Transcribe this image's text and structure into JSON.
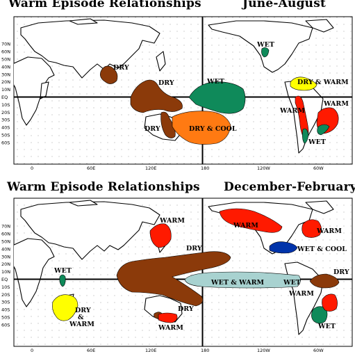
{
  "panels": [
    {
      "title_left": "Warm Episode Relationships",
      "title_right": "June-August",
      "lat_labels": [
        "70N",
        "60N",
        "50N",
        "40N",
        "30N",
        "20N",
        "10N",
        "EQ",
        "10S",
        "20S",
        "30S",
        "40S",
        "50S",
        "60S"
      ],
      "lon_labels": [
        "0",
        "60E",
        "120E",
        "180",
        "120W",
        "60W"
      ],
      "regions": [
        {
          "label": "DRY",
          "kind": "dry",
          "color": "#8b3a0a"
        },
        {
          "label": "DRY",
          "kind": "dry",
          "color": "#8b3a0a"
        },
        {
          "label": "DRY",
          "kind": "dry",
          "color": "#8b3a0a"
        },
        {
          "label": "DRY & COOL",
          "kind": "dry-cool",
          "color": "#ff7a12"
        },
        {
          "label": "WET",
          "kind": "wet",
          "color": "#0f8a5a"
        },
        {
          "label": "WET",
          "kind": "wet",
          "color": "#0f8a5a"
        },
        {
          "label": "DRY & WARM",
          "kind": "dry-warm",
          "color": "#ffff00"
        },
        {
          "label": "WARM",
          "kind": "warm",
          "color": "#ff1a00"
        },
        {
          "label": "WARM",
          "kind": "warm",
          "color": "#ff1a00"
        },
        {
          "label": "WET",
          "kind": "wet",
          "color": "#0f8a5a"
        }
      ]
    },
    {
      "title_left": "Warm Episode Relationships",
      "title_right": "December-February",
      "lat_labels": [
        "70N",
        "60N",
        "50N",
        "40N",
        "30N",
        "20N",
        "10N",
        "EQ",
        "10S",
        "20S",
        "30S",
        "40S",
        "50S",
        "60S"
      ],
      "lon_labels": [
        "0",
        "60E",
        "120E",
        "180",
        "120W",
        "60W"
      ],
      "regions": [
        {
          "label": "WARM",
          "kind": "warm",
          "color": "#ff1a00"
        },
        {
          "label": "WARM",
          "kind": "warm",
          "color": "#ff1a00"
        },
        {
          "label": "WARM",
          "kind": "warm",
          "color": "#ff1a00"
        },
        {
          "label": "DRY",
          "kind": "dry",
          "color": "#8b3a0a"
        },
        {
          "label": "WET",
          "kind": "wet",
          "color": "#0f8a5a"
        },
        {
          "label": "DRY & WARM",
          "kind": "dry-warm",
          "color": "#ffff00"
        },
        {
          "label": "DRY",
          "kind": "dry",
          "color": "#8b3a0a"
        },
        {
          "label": "WARM",
          "kind": "warm",
          "color": "#ff1a00"
        },
        {
          "label": "WET & COOL",
          "kind": "wet-cool",
          "color": "#0033aa"
        },
        {
          "label": "WET & WARM",
          "kind": "wet-warm",
          "color": "#a8d2d0"
        },
        {
          "label": "WET",
          "kind": "wet",
          "color": "#0f8a5a"
        },
        {
          "label": "WARM",
          "kind": "warm",
          "color": "#ff1a00"
        },
        {
          "label": "DRY",
          "kind": "dry",
          "color": "#8b3a0a"
        },
        {
          "label": "WARM",
          "kind": "warm",
          "color": "#ff1a00"
        },
        {
          "label": "WET",
          "kind": "wet",
          "color": "#0f8a5a"
        }
      ]
    }
  ]
}
